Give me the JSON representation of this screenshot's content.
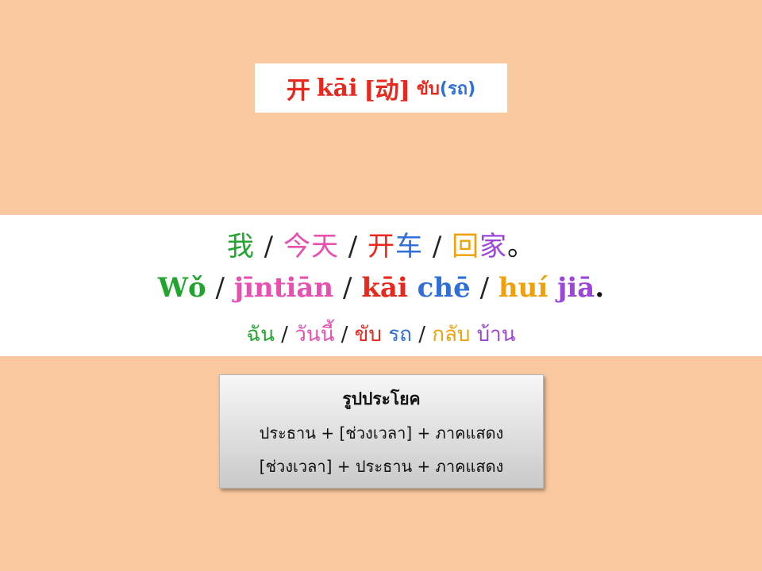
{
  "title": {
    "hanzi": "开",
    "pinyin": "kāi",
    "pos": "[动]",
    "thai": "ขับ",
    "note": "(รถ)"
  },
  "colors": {
    "background": "#fac89e",
    "red": "#e8281c",
    "green": "#22a52e",
    "pink": "#e84fb0",
    "blue": "#2e6fd8",
    "orange": "#f0a00a",
    "purple": "#9b46d8"
  },
  "sentence": {
    "hanzi": [
      {
        "text": "我",
        "color": "#22a52e"
      },
      {
        "text": "今天",
        "color": "#e84fb0"
      },
      {
        "text": "开",
        "color": "#e8281c"
      },
      {
        "text": "车",
        "color": "#2e6fd8"
      },
      {
        "text": "回",
        "color": "#f0a00a"
      },
      {
        "text": "家",
        "color": "#9b46d8"
      },
      {
        "text": "。",
        "color": "#111111"
      }
    ],
    "pinyin": [
      {
        "text": "Wǒ",
        "color": "#22a52e"
      },
      {
        "text": "jīntiān",
        "color": "#e84fb0"
      },
      {
        "text": "kāi",
        "color": "#e8281c"
      },
      {
        "text": "chē",
        "color": "#2e6fd8"
      },
      {
        "text": "huí",
        "color": "#f0a00a"
      },
      {
        "text": "jiā",
        "color": "#9b46d8"
      },
      {
        "text": ".",
        "color": "#111111"
      }
    ],
    "thai": [
      {
        "text": "ฉัน",
        "color": "#22a52e"
      },
      {
        "text": "วันนี้",
        "color": "#e84fb0"
      },
      {
        "text": "ขับ",
        "color": "#e8281c"
      },
      {
        "text": "รถ",
        "color": "#2e6fd8"
      },
      {
        "text": "กลับ",
        "color": "#f0a00a"
      },
      {
        "text": "บ้าน",
        "color": "#9b46d8"
      }
    ],
    "separator": "/"
  },
  "pattern": {
    "title": "รูปประโยค",
    "row1": {
      "a": "ประธาน",
      "plus1": "+",
      "b": "[ช่วงเวลา]",
      "plus2": "+",
      "c": "ภาคแสดง"
    },
    "row2": {
      "a": "[ช่วงเวลา]",
      "plus1": "+",
      "b": "ประธาน",
      "plus2": "+",
      "c": "ภาคแสดง"
    }
  }
}
